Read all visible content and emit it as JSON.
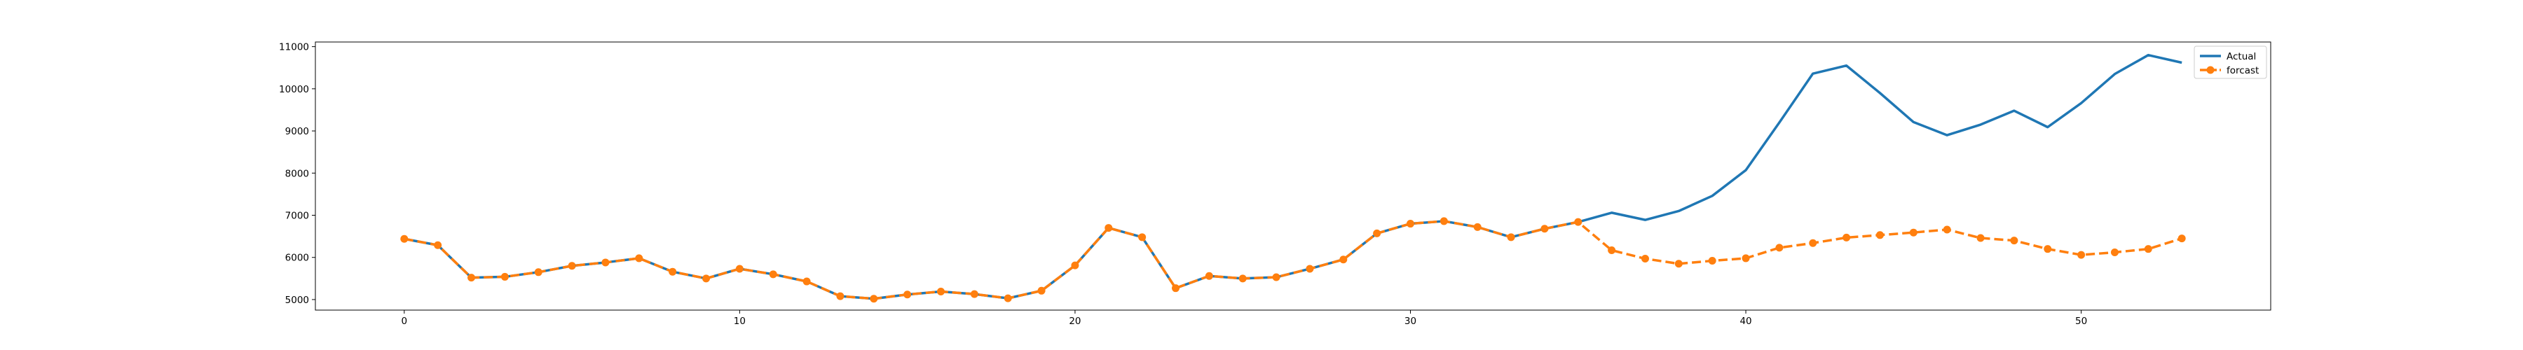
{
  "chart_data": {
    "type": "line",
    "title": "",
    "xlabel": "",
    "ylabel": "",
    "xlim": [
      -2.65,
      55.65
    ],
    "ylim": [
      4750,
      11110
    ],
    "xticks": [
      0,
      10,
      20,
      30,
      40,
      50
    ],
    "yticks": [
      5000,
      6000,
      7000,
      8000,
      9000,
      10000,
      11000
    ],
    "grid": false,
    "legend_position": "top-right",
    "series": [
      {
        "name": "Actual",
        "color": "#1f77b4",
        "style": "solid",
        "x": [
          0,
          1,
          2,
          3,
          4,
          5,
          6,
          7,
          8,
          9,
          10,
          11,
          12,
          13,
          14,
          15,
          16,
          17,
          18,
          19,
          20,
          21,
          22,
          23,
          24,
          25,
          26,
          27,
          28,
          29,
          30,
          31,
          32,
          33,
          34,
          35,
          36,
          37,
          38,
          39,
          40,
          41,
          42,
          43,
          44,
          45,
          46,
          47,
          48,
          49,
          50,
          51,
          52,
          53
        ],
        "values": [
          6440,
          6290,
          5520,
          5540,
          5650,
          5800,
          5880,
          5980,
          5660,
          5500,
          5730,
          5600,
          5430,
          5080,
          5020,
          5120,
          5190,
          5130,
          5030,
          5210,
          5810,
          6700,
          6480,
          5270,
          5560,
          5500,
          5530,
          5730,
          5950,
          6570,
          6800,
          6860,
          6720,
          6480,
          6680,
          6840,
          7060,
          6890,
          7100,
          7460,
          8070,
          9200,
          10360,
          10550,
          9900,
          9210,
          8900,
          9150,
          9480,
          9090,
          9660,
          10350,
          10800,
          10620
        ]
      },
      {
        "name": "forcast",
        "color": "#ff7f0e",
        "style": "dashed",
        "marker": "circle",
        "x": [
          0,
          1,
          2,
          3,
          4,
          5,
          6,
          7,
          8,
          9,
          10,
          11,
          12,
          13,
          14,
          15,
          16,
          17,
          18,
          19,
          20,
          21,
          22,
          23,
          24,
          25,
          26,
          27,
          28,
          29,
          30,
          31,
          32,
          33,
          34,
          35,
          36,
          37,
          38,
          39,
          40,
          41,
          42,
          43,
          44,
          45,
          46,
          47,
          48,
          49,
          50,
          51,
          52,
          53
        ],
        "values": [
          6440,
          6290,
          5520,
          5540,
          5650,
          5800,
          5880,
          5980,
          5660,
          5500,
          5730,
          5600,
          5430,
          5080,
          5020,
          5120,
          5190,
          5130,
          5030,
          5210,
          5810,
          6700,
          6480,
          5270,
          5560,
          5500,
          5530,
          5730,
          5950,
          6570,
          6800,
          6860,
          6720,
          6480,
          6680,
          6840,
          6170,
          5970,
          5850,
          5920,
          5980,
          6230,
          6340,
          6470,
          6530,
          6590,
          6660,
          6460,
          6400,
          6200,
          6060,
          6120,
          6200,
          6450
        ]
      }
    ]
  }
}
